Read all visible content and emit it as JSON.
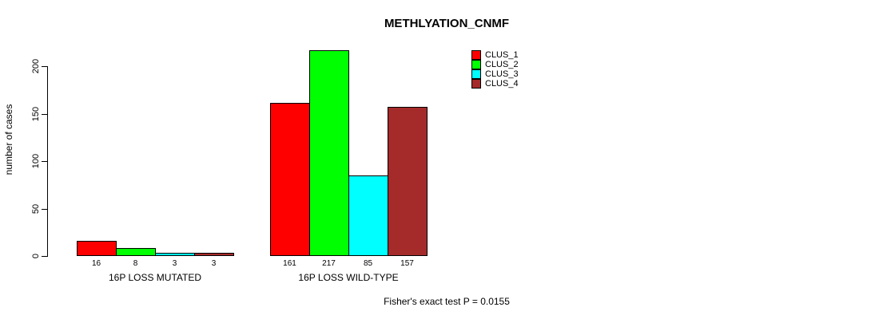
{
  "chart_data": {
    "type": "bar",
    "title": "METHLYATION_CNMF",
    "ylabel": "number of cases",
    "xlabel": "",
    "ylim": [
      0,
      200
    ],
    "yticks": [
      0,
      50,
      100,
      150,
      200
    ],
    "categories": [
      "16P LOSS MUTATED",
      "16P LOSS WILD-TYPE"
    ],
    "series": [
      {
        "name": "CLUS_1",
        "color": "#ff0000",
        "values": [
          16,
          161
        ]
      },
      {
        "name": "CLUS_2",
        "color": "#00ff00",
        "values": [
          8,
          217
        ]
      },
      {
        "name": "CLUS_3",
        "color": "#00ffff",
        "values": [
          3,
          85
        ]
      },
      {
        "name": "CLUS_4",
        "color": "#a52a2a",
        "values": [
          3,
          157
        ]
      }
    ],
    "legend_position": "top-right",
    "grid": false,
    "bar_value_labels_visible": true,
    "annotation": "Fisher's exact test P = 0.0155"
  },
  "colors": {
    "background": "#ffffff",
    "axis": "#000000",
    "text": "#000000"
  }
}
